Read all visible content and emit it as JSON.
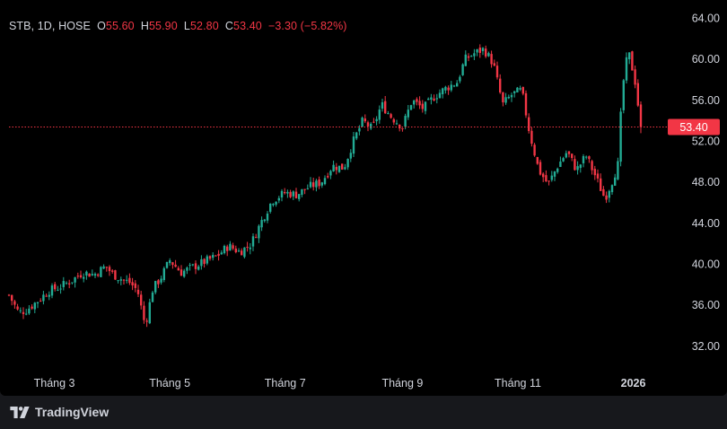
{
  "legend": {
    "symbol": "STB, 1D, HOSE",
    "open_label": "O",
    "open": "55.60",
    "high_label": "H",
    "high": "55.90",
    "low_label": "L",
    "low": "52.80",
    "close_label": "C",
    "close": "53.40",
    "change": "−3.30 (−5.82%)"
  },
  "brand": {
    "name": "TradingView",
    "icon": "tradingview-logo-icon"
  },
  "colors": {
    "up": "#22ab94",
    "down": "#f23645",
    "text": "#d1d4dc",
    "background": "#000000",
    "last_price": "#f23645"
  },
  "chart_data": {
    "type": "candlestick",
    "y_axis_labels": [
      "64.00",
      "60.00",
      "56.00",
      "52.00",
      "48.00",
      "44.00",
      "40.00",
      "36.00",
      "32.00"
    ],
    "y_axis_values": [
      64,
      60,
      56,
      52,
      48,
      44,
      40,
      36,
      32
    ],
    "ylim": [
      29.7,
      65.1
    ],
    "x_axis_labels": [
      "Tháng 3",
      "Tháng 5",
      "Tháng 7",
      "Tháng 9",
      "Tháng 11",
      "2026"
    ],
    "x_axis_dates": [
      "2025-03-01",
      "2025-05-01",
      "2025-07-01",
      "2025-09-01",
      "2025-11-01",
      "2026-01-01"
    ],
    "last_price": 53.4,
    "last_price_label": "53.40",
    "grid": false,
    "close_path": [
      [
        "2025-02-05",
        37.0
      ],
      [
        "2025-02-10",
        35.3
      ],
      [
        "2025-02-14",
        35.5
      ],
      [
        "2025-02-20",
        36.4
      ],
      [
        "2025-02-26",
        37.4
      ],
      [
        "2025-03-04",
        37.8
      ],
      [
        "2025-03-10",
        38.4
      ],
      [
        "2025-03-16",
        39.2
      ],
      [
        "2025-03-22",
        39.0
      ],
      [
        "2025-03-28",
        39.8
      ],
      [
        "2025-04-01",
        39.0
      ],
      [
        "2025-04-06",
        38.5
      ],
      [
        "2025-04-10",
        38.2
      ],
      [
        "2025-04-14",
        37.4
      ],
      [
        "2025-04-18",
        34.0
      ],
      [
        "2025-04-22",
        37.6
      ],
      [
        "2025-04-26",
        38.6
      ],
      [
        "2025-05-01",
        40.4
      ],
      [
        "2025-05-07",
        39.2
      ],
      [
        "2025-05-14",
        39.8
      ],
      [
        "2025-05-20",
        40.3
      ],
      [
        "2025-05-26",
        40.8
      ],
      [
        "2025-06-01",
        41.8
      ],
      [
        "2025-06-07",
        41.2
      ],
      [
        "2025-06-13",
        42.0
      ],
      [
        "2025-06-19",
        44.4
      ],
      [
        "2025-06-24",
        46.2
      ],
      [
        "2025-07-01",
        47.0
      ],
      [
        "2025-07-07",
        46.8
      ],
      [
        "2025-07-14",
        47.6
      ],
      [
        "2025-07-20",
        48.0
      ],
      [
        "2025-07-26",
        49.6
      ],
      [
        "2025-08-01",
        49.4
      ],
      [
        "2025-08-06",
        52.0
      ],
      [
        "2025-08-11",
        54.0
      ],
      [
        "2025-08-16",
        53.2
      ],
      [
        "2025-08-21",
        55.6
      ],
      [
        "2025-08-26",
        54.4
      ],
      [
        "2025-09-01",
        53.4
      ],
      [
        "2025-09-06",
        56.0
      ],
      [
        "2025-09-12",
        55.2
      ],
      [
        "2025-09-18",
        56.4
      ],
      [
        "2025-09-24",
        57.2
      ],
      [
        "2025-09-30",
        57.8
      ],
      [
        "2025-10-04",
        60.0
      ],
      [
        "2025-10-09",
        60.6
      ],
      [
        "2025-10-14",
        61.0
      ],
      [
        "2025-10-19",
        59.6
      ],
      [
        "2025-10-24",
        55.6
      ],
      [
        "2025-10-29",
        56.6
      ],
      [
        "2025-11-03",
        57.0
      ],
      [
        "2025-11-07",
        53.0
      ],
      [
        "2025-11-12",
        49.2
      ],
      [
        "2025-11-17",
        47.8
      ],
      [
        "2025-11-22",
        49.6
      ],
      [
        "2025-11-27",
        51.0
      ],
      [
        "2025-12-02",
        49.2
      ],
      [
        "2025-12-07",
        50.6
      ],
      [
        "2025-12-12",
        48.6
      ],
      [
        "2025-12-17",
        46.4
      ],
      [
        "2025-12-21",
        48.2
      ],
      [
        "2025-12-24",
        49.8
      ],
      [
        "2025-12-26",
        56.6
      ],
      [
        "2025-12-28",
        59.6
      ],
      [
        "2025-12-30",
        60.4
      ],
      [
        "2026-01-02",
        57.8
      ],
      [
        "2026-01-05",
        53.4
      ]
    ]
  }
}
